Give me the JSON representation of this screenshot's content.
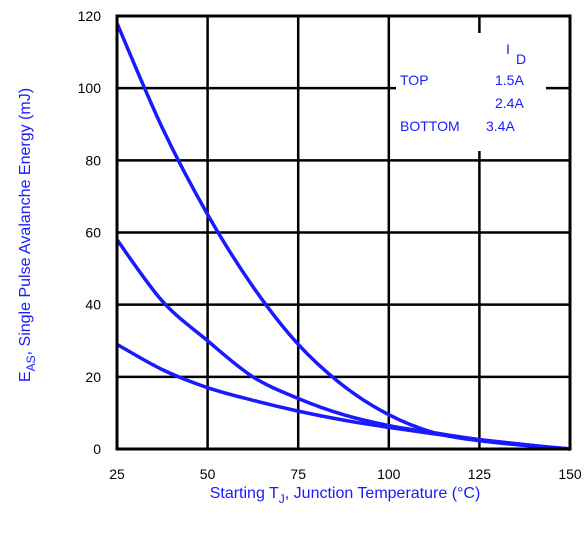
{
  "chart_data": {
    "type": "line",
    "xlabel": {
      "prefix": "Starting T",
      "sub": "J",
      "suffix": ", Junction Temperature (°C)"
    },
    "ylabel": {
      "prefix": "E",
      "sub": "AS",
      "suffix": ", Single Pulse Avalanche Energy (mJ)"
    },
    "xlim": [
      25,
      150
    ],
    "ylim": [
      0,
      120
    ],
    "xticks": [
      25,
      50,
      75,
      100,
      125,
      150
    ],
    "yticks": [
      0,
      20,
      40,
      60,
      80,
      100,
      120
    ],
    "grid": true,
    "legend": {
      "header_main": "I",
      "header_sub": "D",
      "rows": [
        {
          "label": "TOP",
          "value": "1.5A"
        },
        {
          "label": "",
          "value": "2.4A"
        },
        {
          "label": "BOTTOM",
          "value": "3.4A"
        }
      ]
    },
    "x": [
      25,
      37.5,
      50,
      62.5,
      75,
      87.5,
      100,
      112.5,
      125,
      137.5,
      150
    ],
    "series": [
      {
        "name": "1.5A",
        "values": [
          118,
          89,
          65,
          45,
          29,
          17.5,
          9.5,
          4.5,
          2.3,
          1.0,
          0
        ]
      },
      {
        "name": "2.4A",
        "values": [
          58,
          41,
          30,
          20,
          14,
          9.5,
          6.5,
          4.5,
          2.6,
          1.2,
          0
        ]
      },
      {
        "name": "3.4A",
        "values": [
          29,
          22,
          17,
          13.5,
          10.5,
          8,
          6,
          4.2,
          2.6,
          1.2,
          0
        ]
      }
    ],
    "colors": {
      "curve": "#1a1aff",
      "axis_text": "#1a1aff",
      "grid": "#000000",
      "legend_text": "#1a1aff"
    }
  }
}
